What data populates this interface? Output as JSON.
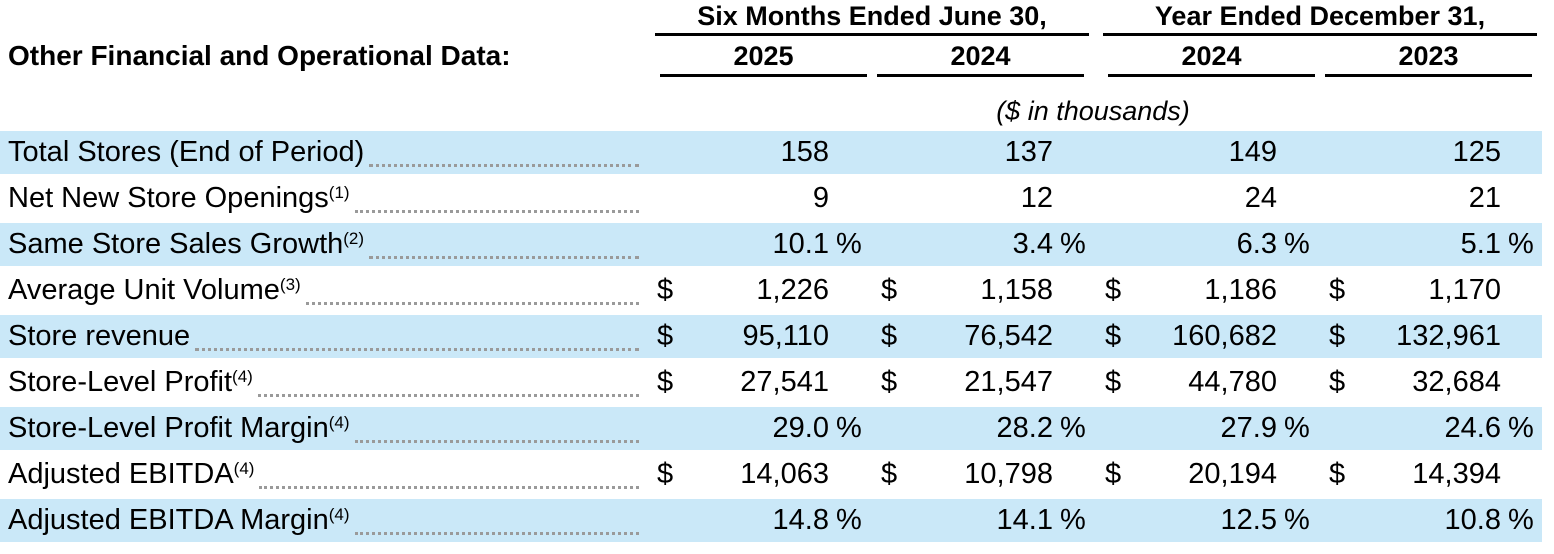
{
  "table": {
    "title": "Other Financial and Operational Data:",
    "units_note": "($ in thousands)",
    "highlight_color": "#cae8f8",
    "column_groups": [
      {
        "label": "Six Months Ended June 30,",
        "years": [
          "2025",
          "2024"
        ]
      },
      {
        "label": "Year Ended December 31,",
        "years": [
          "2024",
          "2023"
        ]
      }
    ],
    "rows": [
      {
        "label": "Total Stores (End of Period)",
        "footnote": "",
        "unit": "",
        "values": [
          "158",
          "137",
          "149",
          "125"
        ]
      },
      {
        "label": "Net New Store Openings",
        "footnote": "(1)",
        "unit": "",
        "values": [
          "9",
          "12",
          "24",
          "21"
        ]
      },
      {
        "label": "Same Store Sales Growth",
        "footnote": "(2)",
        "unit": "%",
        "values": [
          "10.1",
          "3.4",
          "6.3",
          "5.1"
        ]
      },
      {
        "label": "Average Unit Volume",
        "footnote": "(3)",
        "unit": "$",
        "values": [
          "1,226",
          "1,158",
          "1,186",
          "1,170"
        ]
      },
      {
        "label": "Store revenue",
        "footnote": "",
        "unit": "$",
        "values": [
          "95,110",
          "76,542",
          "160,682",
          "132,961"
        ]
      },
      {
        "label": "Store-Level Profit",
        "footnote": "(4)",
        "unit": "$",
        "values": [
          "27,541",
          "21,547",
          "44,780",
          "32,684"
        ]
      },
      {
        "label": "Store-Level Profit Margin",
        "footnote": "(4)",
        "unit": "%",
        "values": [
          "29.0",
          "28.2",
          "27.9",
          "24.6"
        ]
      },
      {
        "label": "Adjusted EBITDA",
        "footnote": "(4)",
        "unit": "$",
        "values": [
          "14,063",
          "10,798",
          "20,194",
          "14,394"
        ]
      },
      {
        "label": "Adjusted EBITDA Margin",
        "footnote": "(4)",
        "unit": "%",
        "values": [
          "14.8",
          "14.1",
          "12.5",
          "10.8"
        ]
      }
    ]
  }
}
